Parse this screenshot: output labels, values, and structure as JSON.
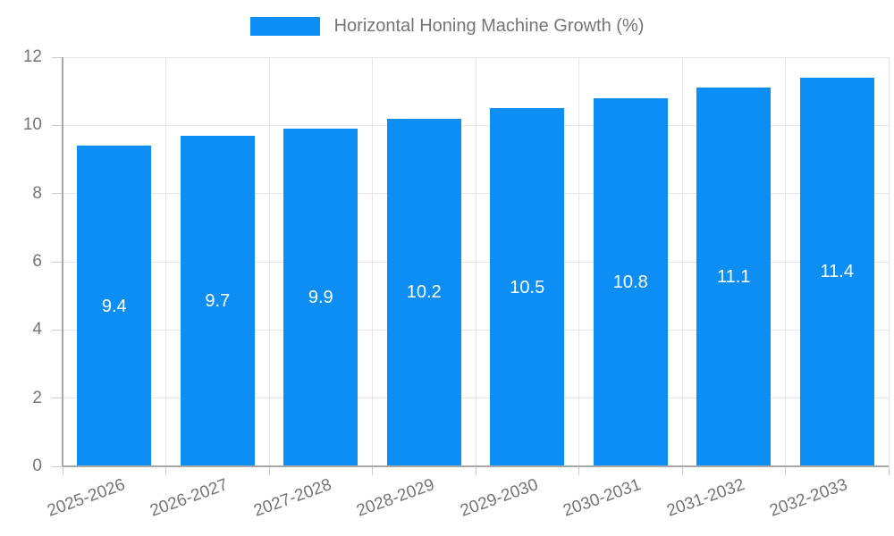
{
  "page": {
    "background": "#ffffff"
  },
  "legend": {
    "label": "Horizontal Honing Machine Growth (%)"
  },
  "chart_data": {
    "type": "bar",
    "title": "Horizontal Honing Machine Growth (%)",
    "categories": [
      "2025-2026",
      "2026-2027",
      "2027-2028",
      "2028-2029",
      "2029-2030",
      "2030-2031",
      "2031-2032",
      "2032-2033"
    ],
    "values": [
      9.4,
      9.7,
      9.9,
      10.2,
      10.5,
      10.8,
      11.1,
      11.4
    ],
    "value_labels": [
      "9.4",
      "9.7",
      "9.9",
      "10.2",
      "10.5",
      "10.8",
      "11.1",
      "11.4"
    ],
    "xlabel": "",
    "ylabel": "",
    "ylim": [
      0,
      12
    ],
    "yticks": [
      0,
      2,
      4,
      6,
      8,
      10,
      12
    ],
    "ytick_labels": [
      "0",
      "2",
      "4",
      "6",
      "8",
      "10",
      "12"
    ],
    "grid": true,
    "legend_position": "top",
    "colors": {
      "bar": "#0d8ef4",
      "gridline": "#e6e6e6",
      "axis": "#a8a8a8",
      "tick": "#cccccc",
      "text": "#757575",
      "value_text": "#ffffff"
    }
  }
}
